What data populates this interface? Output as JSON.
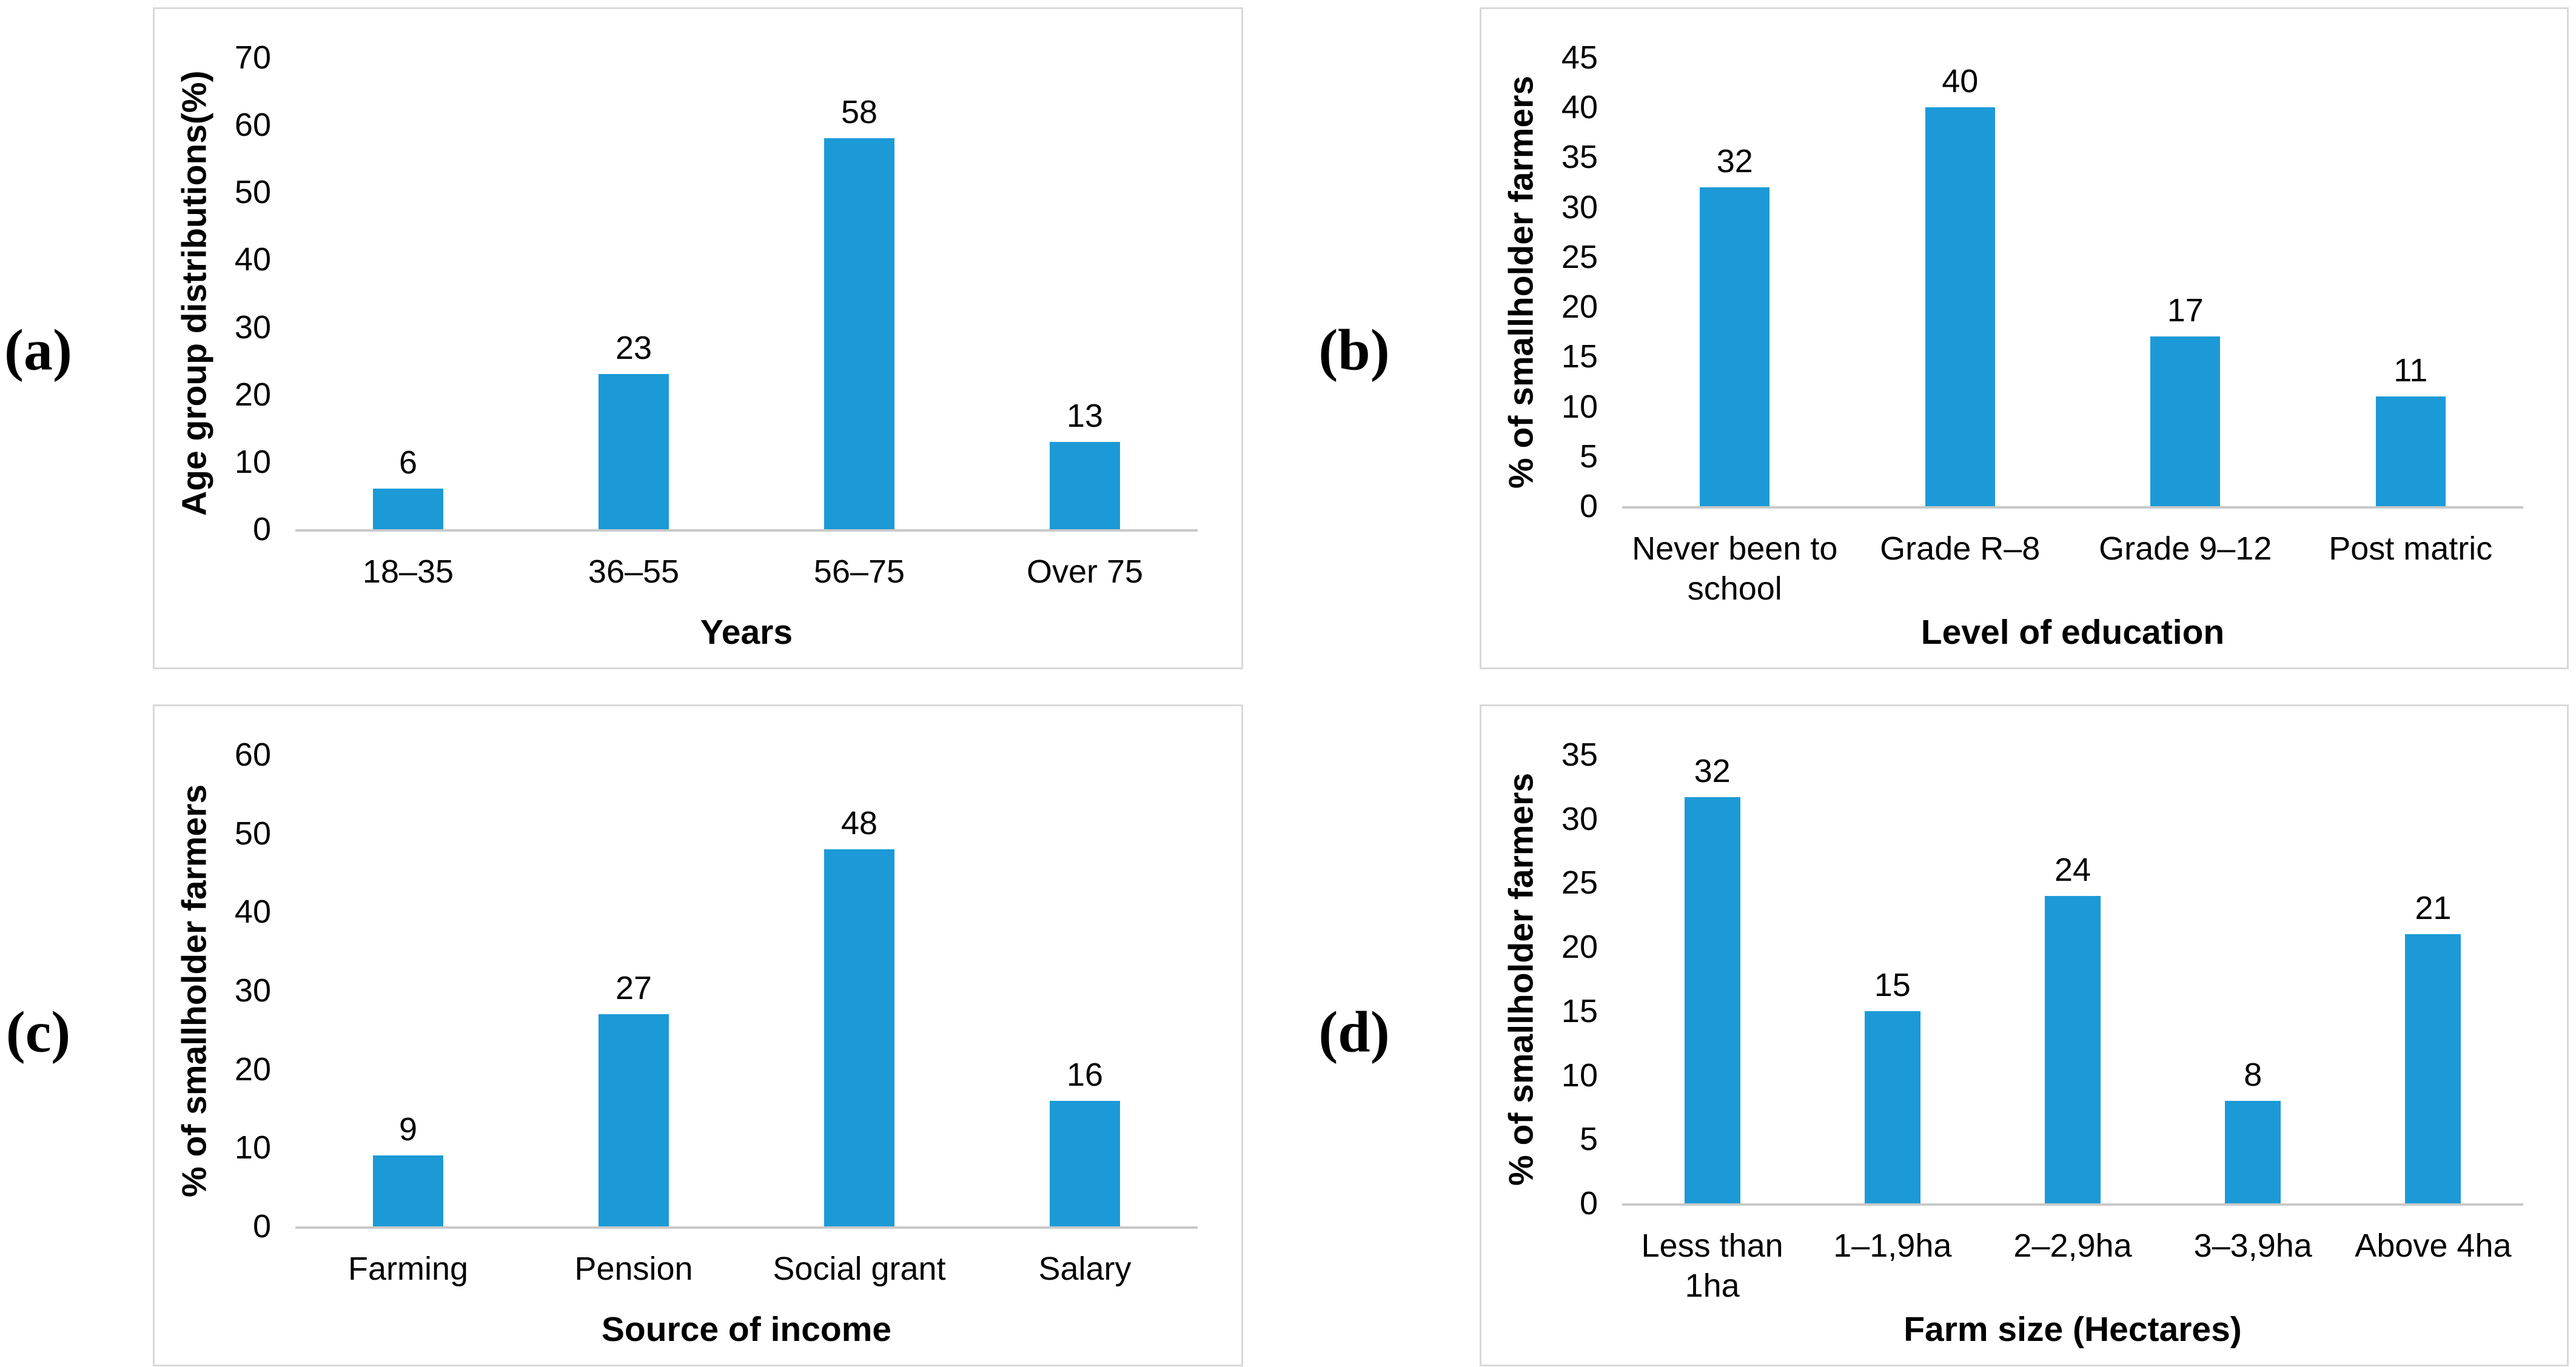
{
  "figure": {
    "background": "#ffffff",
    "bar_color": "#1b9ad7",
    "panel_border_color": "#d9d9d9",
    "axis_line_color": "#c9c9c9",
    "text_color": "#000000",
    "panel_letters": [
      "(a)",
      "(b)",
      "(c)",
      "(d)"
    ]
  },
  "chart_data": [
    {
      "panel_label": "(a)",
      "type": "bar",
      "title": "",
      "categories": [
        "18–35",
        "36–55",
        "56–75",
        "Over 75"
      ],
      "values": [
        6,
        23,
        58,
        13
      ],
      "xlabel": "Years",
      "ylabel": "Age group distributions(%)",
      "ylim": [
        0,
        70
      ],
      "ytick_step": 10,
      "yticks": [
        0,
        10,
        20,
        30,
        40,
        50,
        60,
        70
      ],
      "grid": false,
      "legend": "none",
      "value_labels": true,
      "bar_color": "#1b9ad7"
    },
    {
      "panel_label": "(b)",
      "type": "bar",
      "title": "",
      "categories": [
        "Never been to school",
        "Grade R–8",
        "Grade 9–12",
        "Post matric"
      ],
      "values": [
        32,
        40,
        17,
        11
      ],
      "xlabel": "Level of education",
      "ylabel": "% of smallholder farmers",
      "ylim": [
        0,
        45
      ],
      "ytick_step": 5,
      "yticks": [
        0,
        5,
        10,
        15,
        20,
        25,
        30,
        35,
        40,
        45
      ],
      "grid": false,
      "legend": "none",
      "value_labels": true,
      "bar_color": "#1b9ad7"
    },
    {
      "panel_label": "(c)",
      "type": "bar",
      "title": "",
      "categories": [
        "Farming",
        "Pension",
        "Social grant",
        "Salary"
      ],
      "values": [
        9,
        27,
        48,
        16
      ],
      "xlabel": "Source of income",
      "ylabel": "% of smallholder farmers",
      "ylim": [
        0,
        60
      ],
      "ytick_step": 10,
      "yticks": [
        0,
        10,
        20,
        30,
        40,
        50,
        60
      ],
      "grid": false,
      "legend": "none",
      "value_labels": true,
      "bar_color": "#1b9ad7"
    },
    {
      "panel_label": "(d)",
      "type": "bar",
      "title": "",
      "categories": [
        "Less than 1ha",
        "1–1,9ha",
        "2–2,9ha",
        "3–3,9ha",
        "Above 4ha"
      ],
      "values": [
        32,
        15,
        24,
        8,
        21
      ],
      "xlabel": "Farm size (Hectares)",
      "ylabel": "% of smallholder farmers",
      "ylim": [
        0,
        35
      ],
      "ytick_step": 5,
      "yticks": [
        0,
        5,
        10,
        15,
        20,
        25,
        30,
        35
      ],
      "grid": false,
      "legend": "none",
      "value_labels": true,
      "bar_color": "#1b9ad7"
    }
  ]
}
